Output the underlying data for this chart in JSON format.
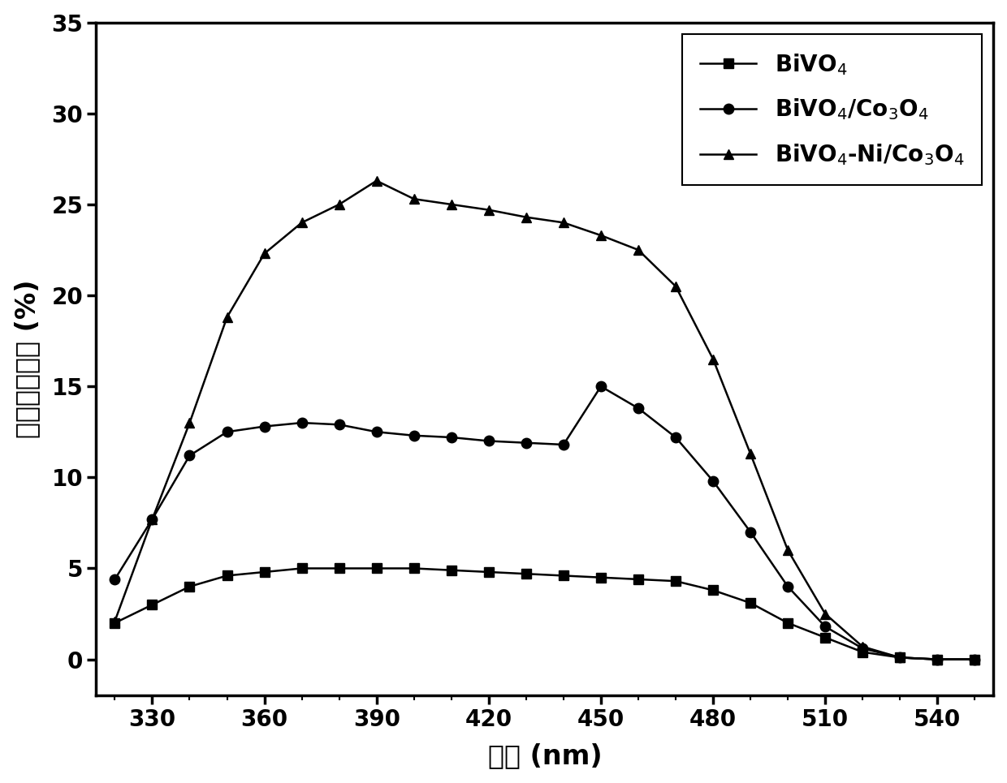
{
  "bivo4_x": [
    320,
    330,
    340,
    350,
    360,
    370,
    380,
    390,
    400,
    410,
    420,
    430,
    440,
    450,
    460,
    470,
    480,
    490,
    500,
    510,
    520,
    530,
    540,
    550
  ],
  "bivo4_y": [
    2.0,
    3.0,
    4.0,
    4.6,
    4.8,
    5.0,
    5.0,
    5.0,
    5.0,
    4.9,
    4.8,
    4.7,
    4.6,
    4.5,
    4.4,
    4.3,
    3.8,
    3.1,
    2.0,
    1.2,
    0.4,
    0.1,
    0.0,
    0.0
  ],
  "co3o4_x": [
    320,
    330,
    340,
    350,
    360,
    370,
    380,
    390,
    400,
    410,
    420,
    430,
    440,
    450,
    460,
    470,
    480,
    490,
    500,
    510,
    520,
    530,
    540,
    550
  ],
  "co3o4_y": [
    4.4,
    7.7,
    11.2,
    12.5,
    12.8,
    13.0,
    12.9,
    12.5,
    12.3,
    12.2,
    12.0,
    11.9,
    11.8,
    15.0,
    13.8,
    12.2,
    9.8,
    7.0,
    4.0,
    1.8,
    0.6,
    0.1,
    0.0,
    0.0
  ],
  "ni_co3o4_x": [
    320,
    330,
    340,
    350,
    360,
    370,
    380,
    390,
    400,
    410,
    420,
    430,
    440,
    450,
    460,
    470,
    480,
    490,
    500,
    510,
    520,
    530,
    540,
    550
  ],
  "ni_co3o4_y": [
    2.1,
    7.7,
    13.0,
    18.8,
    22.3,
    24.0,
    25.0,
    26.3,
    25.3,
    25.0,
    24.7,
    24.3,
    24.0,
    23.3,
    22.5,
    20.5,
    16.5,
    11.3,
    6.0,
    2.5,
    0.7,
    0.1,
    0.0,
    0.0
  ],
  "xlabel": "波长 (nm)",
  "ylabel": "光电转换效率 (%)",
  "xlim": [
    315,
    555
  ],
  "ylim": [
    -2,
    35
  ],
  "xticks": [
    330,
    360,
    390,
    420,
    450,
    480,
    510,
    540
  ],
  "yticks": [
    0,
    5,
    10,
    15,
    20,
    25,
    30,
    35
  ],
  "legend1": "BiVO$_4$",
  "legend2": "BiVO$_4$/Co$_3$O$_4$",
  "legend3": "BiVO$_4$-Ni/Co$_3$O$_4$",
  "line_color": "#000000",
  "marker_size": 9,
  "linewidth": 1.8
}
